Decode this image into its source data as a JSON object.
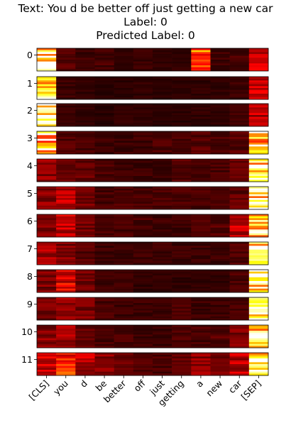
{
  "chart_data": {
    "type": "heatmap",
    "title_lines": [
      "Text: You d be better off just getting a new car",
      "Label: 0",
      "Predicted Label: 0"
    ],
    "tokens": [
      "[CLS]",
      "you",
      "d",
      "be",
      "better",
      "off",
      "just",
      "getting",
      "a",
      "new",
      "car",
      "[SEP]"
    ],
    "layers": [
      "0",
      "1",
      "2",
      "3",
      "4",
      "5",
      "6",
      "7",
      "8",
      "9",
      "10",
      "11"
    ],
    "heads_per_layer": 12,
    "colormap": "hot",
    "value_range": [
      0,
      1
    ],
    "layer_profiles": [
      [
        0.9,
        0.12,
        0.08,
        0.1,
        0.06,
        0.08,
        0.06,
        0.06,
        0.55,
        0.08,
        0.1,
        0.35
      ],
      [
        0.88,
        0.08,
        0.06,
        0.05,
        0.05,
        0.06,
        0.05,
        0.05,
        0.06,
        0.06,
        0.08,
        0.3
      ],
      [
        0.92,
        0.08,
        0.06,
        0.05,
        0.06,
        0.06,
        0.05,
        0.05,
        0.06,
        0.06,
        0.08,
        0.28
      ],
      [
        0.7,
        0.12,
        0.1,
        0.08,
        0.08,
        0.08,
        0.1,
        0.1,
        0.12,
        0.1,
        0.12,
        0.75
      ],
      [
        0.22,
        0.15,
        0.14,
        0.1,
        0.08,
        0.08,
        0.08,
        0.12,
        0.1,
        0.1,
        0.15,
        0.88
      ],
      [
        0.2,
        0.28,
        0.16,
        0.1,
        0.12,
        0.1,
        0.1,
        0.1,
        0.1,
        0.1,
        0.14,
        0.9
      ],
      [
        0.18,
        0.3,
        0.16,
        0.1,
        0.1,
        0.1,
        0.08,
        0.08,
        0.1,
        0.12,
        0.3,
        0.88
      ],
      [
        0.24,
        0.18,
        0.12,
        0.08,
        0.08,
        0.08,
        0.08,
        0.08,
        0.08,
        0.08,
        0.12,
        0.92
      ],
      [
        0.18,
        0.34,
        0.16,
        0.08,
        0.08,
        0.06,
        0.06,
        0.06,
        0.06,
        0.06,
        0.1,
        0.92
      ],
      [
        0.18,
        0.22,
        0.18,
        0.1,
        0.08,
        0.08,
        0.08,
        0.1,
        0.08,
        0.08,
        0.1,
        0.9
      ],
      [
        0.2,
        0.26,
        0.14,
        0.1,
        0.1,
        0.08,
        0.08,
        0.1,
        0.1,
        0.12,
        0.18,
        0.86
      ],
      [
        0.3,
        0.42,
        0.28,
        0.2,
        0.14,
        0.12,
        0.1,
        0.14,
        0.22,
        0.18,
        0.28,
        0.8
      ]
    ]
  }
}
